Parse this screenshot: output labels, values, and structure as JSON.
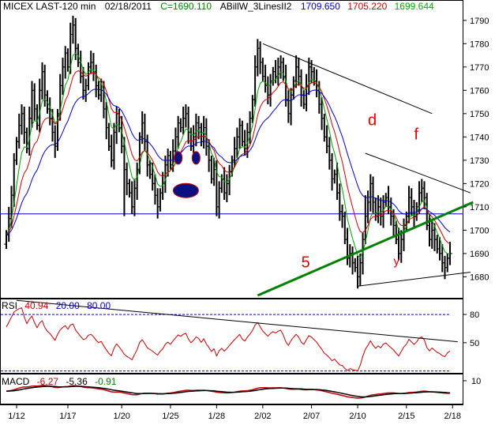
{
  "chart_data": [
    {
      "type": "line",
      "panel": "price",
      "header": {
        "symbol": "MICEX LAST-120 min",
        "date": "02/18/2011",
        "close_label": "C=1690.110",
        "indicator": "ABillW_3LinesII2",
        "ma_values": [
          {
            "text": "1709.650",
            "color": "#0000cc"
          },
          {
            "text": "1705.220",
            "color": "#cc0000"
          },
          {
            "text": "1699.644",
            "color": "#00aa00"
          }
        ]
      },
      "ylim": [
        1672,
        1794
      ],
      "y_ticks": [
        1680,
        1690,
        1700,
        1710,
        1720,
        1730,
        1740,
        1750,
        1760,
        1770,
        1780,
        1790
      ],
      "x_ticks": [
        {
          "label": "1/12",
          "i": 4
        },
        {
          "label": "1/17",
          "i": 24
        },
        {
          "label": "1/20",
          "i": 45
        },
        {
          "label": "1/25",
          "i": 64
        },
        {
          "label": "1/28",
          "i": 82
        },
        {
          "label": "2/02",
          "i": 100
        },
        {
          "label": "2/07",
          "i": 119
        },
        {
          "label": "2/10",
          "i": 137
        },
        {
          "label": "2/15",
          "i": 156
        },
        {
          "label": "2/18",
          "i": 174
        }
      ],
      "close": [
        1698,
        1705,
        1715,
        1730,
        1738,
        1745,
        1750,
        1742,
        1735,
        1748,
        1760,
        1752,
        1745,
        1760,
        1768,
        1758,
        1752,
        1748,
        1742,
        1736,
        1750,
        1762,
        1770,
        1776,
        1770,
        1784,
        1788,
        1778,
        1772,
        1766,
        1760,
        1762,
        1770,
        1772,
        1768,
        1762,
        1758,
        1760,
        1752,
        1744,
        1736,
        1730,
        1742,
        1750,
        1744,
        1736,
        1726,
        1720,
        1716,
        1710,
        1718,
        1726,
        1740,
        1746,
        1738,
        1728,
        1724,
        1720,
        1715,
        1710,
        1716,
        1720,
        1728,
        1732,
        1728,
        1734,
        1740,
        1746,
        1744,
        1748,
        1750,
        1742,
        1736,
        1740,
        1746,
        1744,
        1738,
        1744,
        1736,
        1730,
        1722,
        1726,
        1710,
        1718,
        1722,
        1716,
        1720,
        1725,
        1730,
        1735,
        1740,
        1745,
        1738,
        1735,
        1742,
        1748,
        1756,
        1770,
        1778,
        1772,
        1766,
        1762,
        1758,
        1764,
        1768,
        1766,
        1770,
        1772,
        1766,
        1756,
        1750,
        1758,
        1764,
        1770,
        1766,
        1758,
        1754,
        1762,
        1770,
        1768,
        1764,
        1760,
        1754,
        1748,
        1740,
        1736,
        1730,
        1722,
        1724,
        1716,
        1708,
        1706,
        1696,
        1688,
        1690,
        1686,
        1684,
        1680,
        1686,
        1696,
        1706,
        1712,
        1720,
        1712,
        1706,
        1710,
        1706,
        1712,
        1714,
        1710,
        1706,
        1702,
        1696,
        1690,
        1696,
        1702,
        1706,
        1714,
        1710,
        1706,
        1710,
        1716,
        1718,
        1714,
        1702,
        1696,
        1700,
        1696,
        1692,
        1690,
        1686,
        1684,
        1688,
        1690
      ],
      "extra_highs": {
        "6": 1752,
        "27": 1790,
        "98": 1780,
        "140": 1715,
        "173": 1684
      },
      "extra_lows": {
        "46": 1706,
        "82": 1706,
        "137": 1675
      },
      "series": [
        {
          "name": "MA-fast",
          "color": "#00a000",
          "period": 6
        },
        {
          "name": "MA-mid",
          "color": "#d00000",
          "period": 12
        },
        {
          "name": "MA-slow",
          "color": "#0000d0",
          "period": 24
        }
      ],
      "hline": 1707,
      "trendlines": [
        {
          "color": "#000000",
          "from": [
            100,
            1780
          ],
          "to": [
            166,
            1750
          ]
        },
        {
          "color": "#000000",
          "from": [
            140,
            1733
          ],
          "to": [
            181,
            1716
          ]
        },
        {
          "color": "#000000",
          "from": [
            137,
            1676
          ],
          "to": [
            181,
            1682
          ]
        },
        {
          "color": "#008000",
          "from": [
            98,
            1672
          ],
          "to": [
            182,
            1712
          ],
          "width": 3
        }
      ],
      "annotations": [
        {
          "text": "d",
          "i": 141,
          "v": 1745,
          "size": "large"
        },
        {
          "text": "f",
          "i": 159,
          "v": 1739,
          "size": "large"
        },
        {
          "text": "5",
          "i": 115,
          "v": 1684,
          "size": "large"
        },
        {
          "text": "y",
          "i": 151,
          "v": 1685,
          "size": "small"
        }
      ],
      "face_marks": [
        {
          "shape": "eye",
          "i": 67,
          "v": 1731
        },
        {
          "shape": "eye",
          "i": 74,
          "v": 1731
        },
        {
          "shape": "mouth",
          "i": 70,
          "v": 1717
        }
      ]
    },
    {
      "type": "line",
      "panel": "rsi",
      "legend": [
        {
          "text": "RSI",
          "color": "#000000"
        },
        {
          "text": "40.94",
          "color": "#cc0000"
        },
        {
          "text": "20.00",
          "color": "#0000cc"
        },
        {
          "text": "80.00",
          "color": "#0000cc"
        }
      ],
      "ylim": [
        18,
        96
      ],
      "y_ticks": [
        50,
        80
      ],
      "levels": [
        {
          "value": 80,
          "color": "#0000cc"
        },
        {
          "value": 20,
          "color": "#0000cc"
        }
      ],
      "trendline": {
        "from": [
          4,
          95
        ],
        "to": [
          176,
          51
        ]
      },
      "series": [
        {
          "color": "#c00000"
        }
      ]
    },
    {
      "type": "line",
      "panel": "macd",
      "legend": [
        {
          "text": "MACD",
          "color": "#000000"
        },
        {
          "text": "-6.27",
          "color": "#cc0000"
        },
        {
          "text": "-5.36",
          "color": "#000000"
        },
        {
          "text": "-0.91",
          "color": "#008000"
        }
      ],
      "ylim": [
        -12,
        16
      ],
      "y_ticks": [
        10
      ],
      "series": [
        {
          "name": "macd",
          "color": "#c00000"
        },
        {
          "name": "signal",
          "color": "#000000"
        }
      ]
    }
  ]
}
